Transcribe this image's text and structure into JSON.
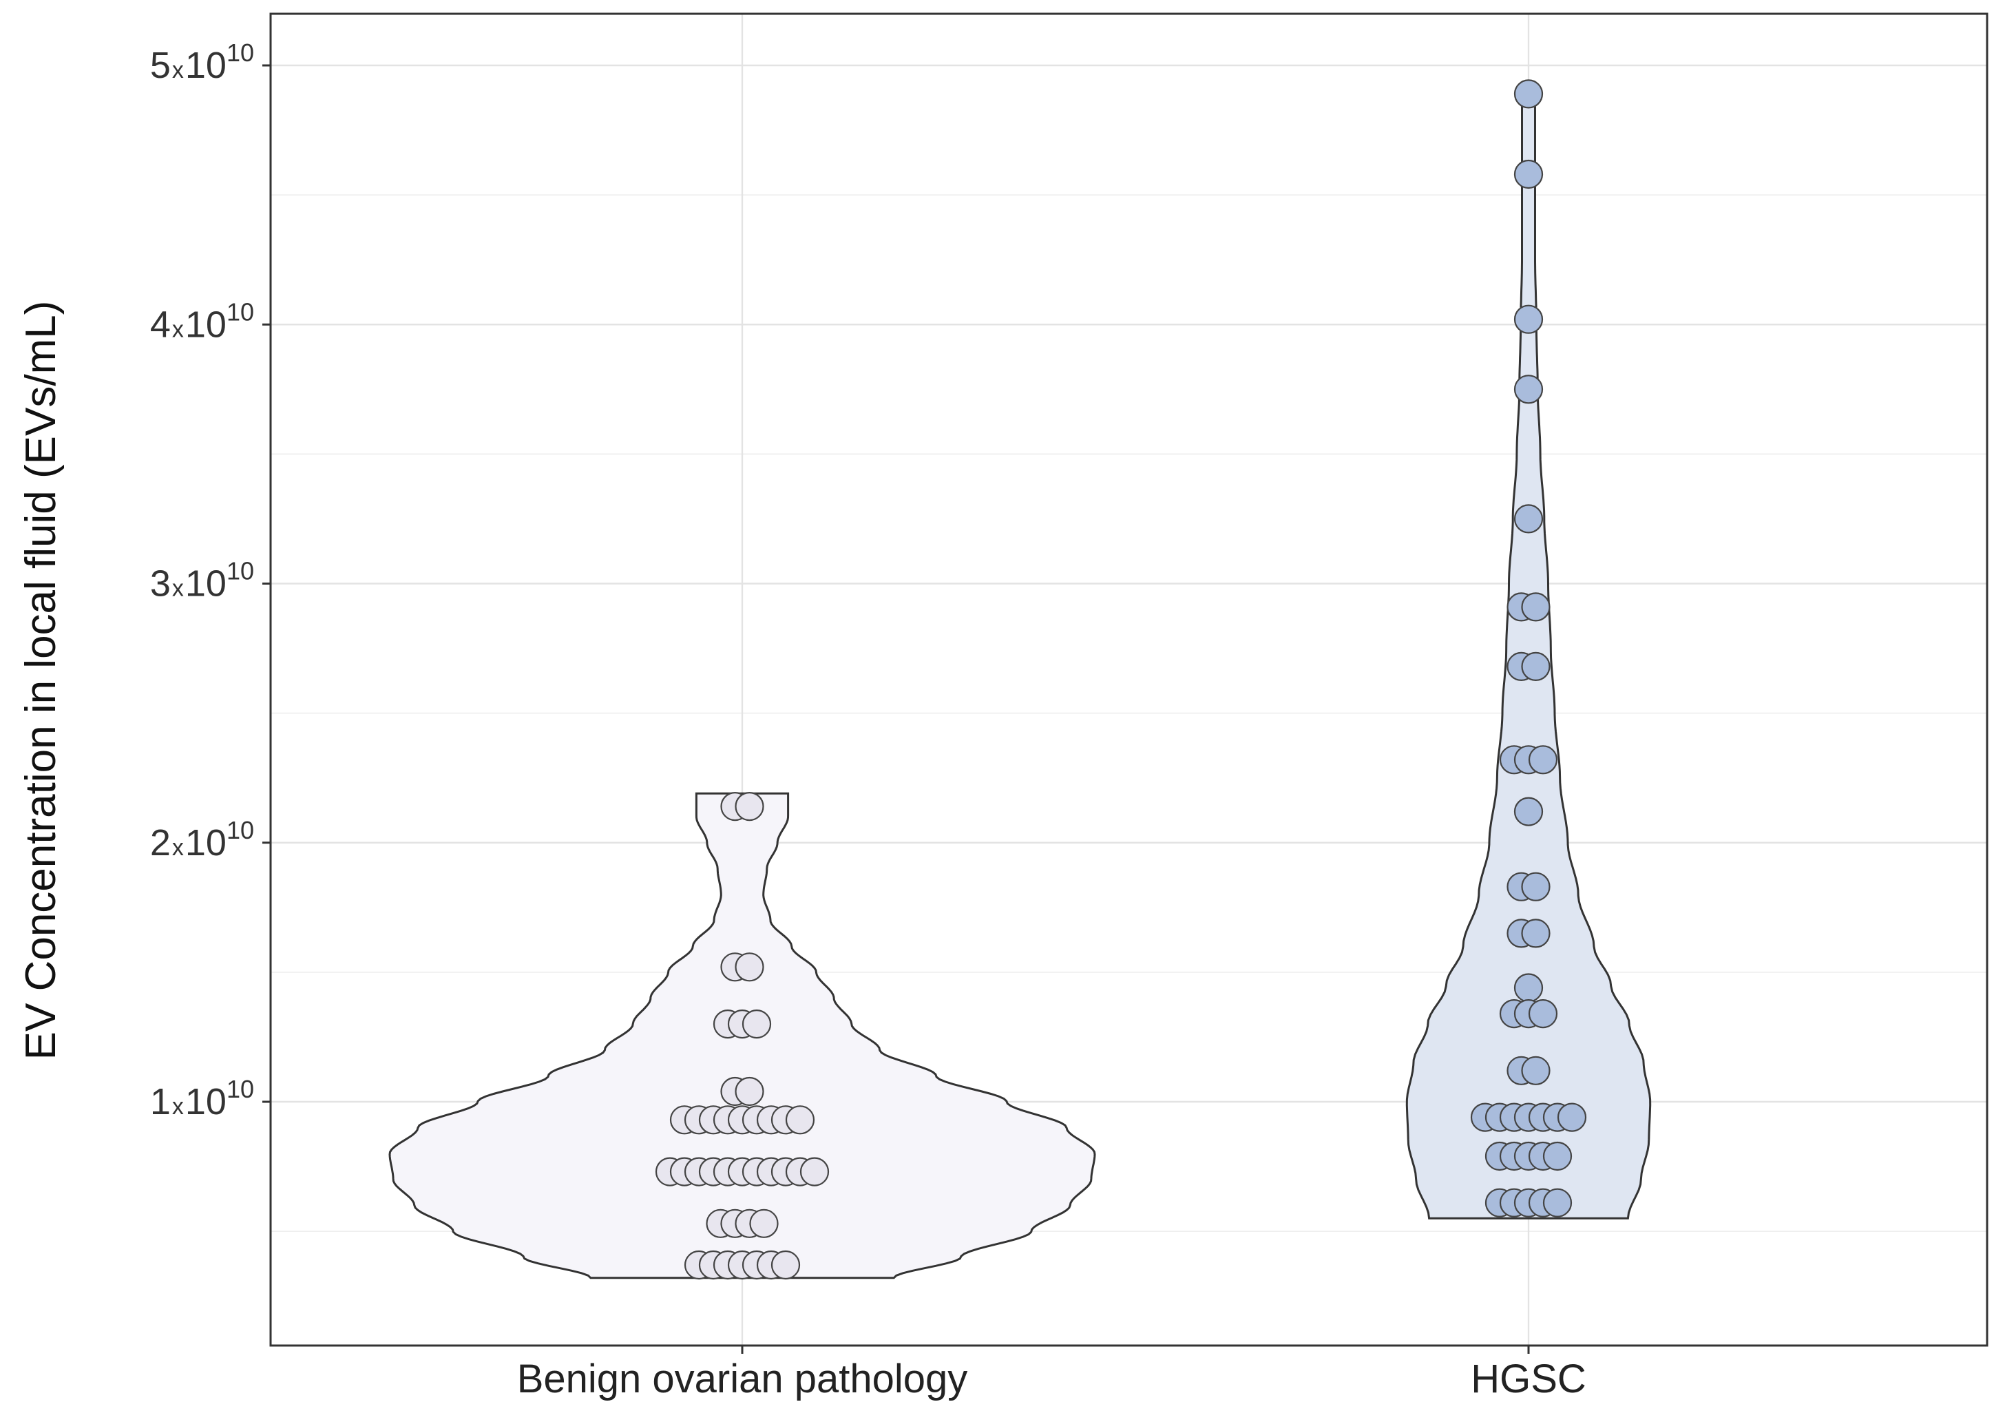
{
  "chart_data": {
    "type": "violin",
    "title": "",
    "xlabel": "",
    "ylabel": "EV Concentration in local fluid (EVs/mL)",
    "ylim": [
      0,
      52000000000
    ],
    "yticks": [
      {
        "value": 10000000000,
        "mantissa": "1",
        "times": "x",
        "base": "10",
        "exp": "10"
      },
      {
        "value": 20000000000,
        "mantissa": "2",
        "times": "x",
        "base": "10",
        "exp": "10"
      },
      {
        "value": 30000000000,
        "mantissa": "3",
        "times": "x",
        "base": "10",
        "exp": "10"
      },
      {
        "value": 40000000000,
        "mantissa": "4",
        "times": "x",
        "base": "10",
        "exp": "10"
      },
      {
        "value": 50000000000,
        "mantissa": "5",
        "times": "x",
        "base": "10",
        "exp": "10"
      }
    ],
    "grid": true,
    "categories": [
      "Benign ovarian pathology",
      "HGSC"
    ],
    "series": [
      {
        "name": "Benign ovarian pathology",
        "fill": "#f6f5fa",
        "dot_fill": "#e8e6ef",
        "violin_range": [
          3200000000,
          21900000000
        ],
        "density": [
          [
            3200000000,
            0.43
          ],
          [
            4000000000,
            0.62
          ],
          [
            5000000000,
            0.82
          ],
          [
            6000000000,
            0.93
          ],
          [
            7000000000,
            0.99
          ],
          [
            8000000000,
            1.0
          ],
          [
            9000000000,
            0.92
          ],
          [
            10000000000,
            0.75
          ],
          [
            11000000000,
            0.55
          ],
          [
            12000000000,
            0.39
          ],
          [
            13000000000,
            0.31
          ],
          [
            14000000000,
            0.26
          ],
          [
            15000000000,
            0.21
          ],
          [
            16000000000,
            0.14
          ],
          [
            17000000000,
            0.08
          ],
          [
            18000000000,
            0.06
          ],
          [
            19000000000,
            0.07
          ],
          [
            20000000000,
            0.1
          ],
          [
            21000000000,
            0.13
          ],
          [
            21900000000,
            0.13
          ]
        ],
        "points": [
          {
            "value": 21400000000,
            "count": 2
          },
          {
            "value": 15200000000,
            "count": 2
          },
          {
            "value": 13000000000,
            "count": 3
          },
          {
            "value": 10400000000,
            "count": 2
          },
          {
            "value": 9300000000,
            "count": 9
          },
          {
            "value": 7300000000,
            "count": 11
          },
          {
            "value": 5300000000,
            "count": 4
          },
          {
            "value": 3700000000,
            "count": 7
          }
        ]
      },
      {
        "name": "HGSC",
        "fill": "#dfe6f2",
        "dot_fill": "#a9bcdc",
        "violin_range": [
          5500000000,
          49200000000
        ],
        "density": [
          [
            5500000000,
            0.76
          ],
          [
            7000000000,
            0.86
          ],
          [
            8500000000,
            0.92
          ],
          [
            10000000000,
            0.93
          ],
          [
            11500000000,
            0.88
          ],
          [
            13000000000,
            0.77
          ],
          [
            14500000000,
            0.63
          ],
          [
            16000000000,
            0.5
          ],
          [
            18000000000,
            0.38
          ],
          [
            20000000000,
            0.3
          ],
          [
            22500000000,
            0.24
          ],
          [
            25000000000,
            0.2
          ],
          [
            27500000000,
            0.17
          ],
          [
            30000000000,
            0.15
          ],
          [
            32500000000,
            0.12
          ],
          [
            35000000000,
            0.09
          ],
          [
            37500000000,
            0.07
          ],
          [
            40000000000,
            0.06
          ],
          [
            42500000000,
            0.05
          ],
          [
            45000000000,
            0.05
          ],
          [
            47500000000,
            0.05
          ],
          [
            49200000000,
            0.05
          ]
        ],
        "points": [
          {
            "value": 48900000000,
            "count": 1
          },
          {
            "value": 45800000000,
            "count": 1
          },
          {
            "value": 40200000000,
            "count": 1
          },
          {
            "value": 37500000000,
            "count": 1
          },
          {
            "value": 32500000000,
            "count": 1
          },
          {
            "value": 29100000000,
            "count": 2
          },
          {
            "value": 26800000000,
            "count": 2
          },
          {
            "value": 23200000000,
            "count": 3
          },
          {
            "value": 21200000000,
            "count": 1
          },
          {
            "value": 18300000000,
            "count": 2
          },
          {
            "value": 16500000000,
            "count": 2
          },
          {
            "value": 14400000000,
            "count": 1
          },
          {
            "value": 13400000000,
            "count": 3
          },
          {
            "value": 11200000000,
            "count": 2
          },
          {
            "value": 9400000000,
            "count": 7
          },
          {
            "value": 7900000000,
            "count": 5
          },
          {
            "value": 6100000000,
            "count": 5
          }
        ]
      }
    ]
  }
}
